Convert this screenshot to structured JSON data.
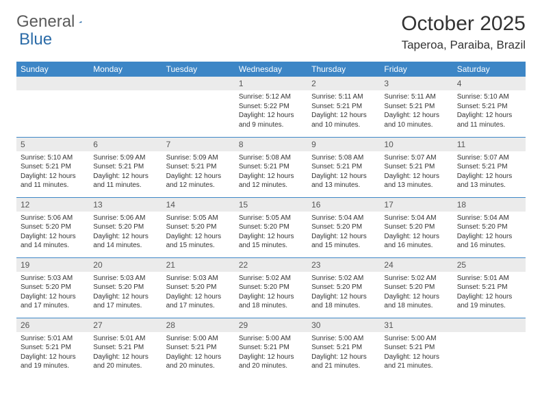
{
  "logo": {
    "text1": "General",
    "text2": "Blue"
  },
  "title": {
    "month": "October 2025",
    "location": "Taperoa, Paraiba, Brazil"
  },
  "colors": {
    "header_bg": "#3d86c6",
    "header_text": "#ffffff",
    "daynum_bg": "#ebebeb",
    "border": "#3d86c6",
    "logo_gray": "#5a5a5a",
    "logo_blue": "#2c6ca8"
  },
  "weekdays": [
    "Sunday",
    "Monday",
    "Tuesday",
    "Wednesday",
    "Thursday",
    "Friday",
    "Saturday"
  ],
  "weeks": [
    [
      {
        "n": "",
        "sr": "",
        "ss": "",
        "dl": ""
      },
      {
        "n": "",
        "sr": "",
        "ss": "",
        "dl": ""
      },
      {
        "n": "",
        "sr": "",
        "ss": "",
        "dl": ""
      },
      {
        "n": "1",
        "sr": "5:12 AM",
        "ss": "5:22 PM",
        "dl": "12 hours and 9 minutes."
      },
      {
        "n": "2",
        "sr": "5:11 AM",
        "ss": "5:21 PM",
        "dl": "12 hours and 10 minutes."
      },
      {
        "n": "3",
        "sr": "5:11 AM",
        "ss": "5:21 PM",
        "dl": "12 hours and 10 minutes."
      },
      {
        "n": "4",
        "sr": "5:10 AM",
        "ss": "5:21 PM",
        "dl": "12 hours and 11 minutes."
      }
    ],
    [
      {
        "n": "5",
        "sr": "5:10 AM",
        "ss": "5:21 PM",
        "dl": "12 hours and 11 minutes."
      },
      {
        "n": "6",
        "sr": "5:09 AM",
        "ss": "5:21 PM",
        "dl": "12 hours and 11 minutes."
      },
      {
        "n": "7",
        "sr": "5:09 AM",
        "ss": "5:21 PM",
        "dl": "12 hours and 12 minutes."
      },
      {
        "n": "8",
        "sr": "5:08 AM",
        "ss": "5:21 PM",
        "dl": "12 hours and 12 minutes."
      },
      {
        "n": "9",
        "sr": "5:08 AM",
        "ss": "5:21 PM",
        "dl": "12 hours and 13 minutes."
      },
      {
        "n": "10",
        "sr": "5:07 AM",
        "ss": "5:21 PM",
        "dl": "12 hours and 13 minutes."
      },
      {
        "n": "11",
        "sr": "5:07 AM",
        "ss": "5:21 PM",
        "dl": "12 hours and 13 minutes."
      }
    ],
    [
      {
        "n": "12",
        "sr": "5:06 AM",
        "ss": "5:20 PM",
        "dl": "12 hours and 14 minutes."
      },
      {
        "n": "13",
        "sr": "5:06 AM",
        "ss": "5:20 PM",
        "dl": "12 hours and 14 minutes."
      },
      {
        "n": "14",
        "sr": "5:05 AM",
        "ss": "5:20 PM",
        "dl": "12 hours and 15 minutes."
      },
      {
        "n": "15",
        "sr": "5:05 AM",
        "ss": "5:20 PM",
        "dl": "12 hours and 15 minutes."
      },
      {
        "n": "16",
        "sr": "5:04 AM",
        "ss": "5:20 PM",
        "dl": "12 hours and 15 minutes."
      },
      {
        "n": "17",
        "sr": "5:04 AM",
        "ss": "5:20 PM",
        "dl": "12 hours and 16 minutes."
      },
      {
        "n": "18",
        "sr": "5:04 AM",
        "ss": "5:20 PM",
        "dl": "12 hours and 16 minutes."
      }
    ],
    [
      {
        "n": "19",
        "sr": "5:03 AM",
        "ss": "5:20 PM",
        "dl": "12 hours and 17 minutes."
      },
      {
        "n": "20",
        "sr": "5:03 AM",
        "ss": "5:20 PM",
        "dl": "12 hours and 17 minutes."
      },
      {
        "n": "21",
        "sr": "5:03 AM",
        "ss": "5:20 PM",
        "dl": "12 hours and 17 minutes."
      },
      {
        "n": "22",
        "sr": "5:02 AM",
        "ss": "5:20 PM",
        "dl": "12 hours and 18 minutes."
      },
      {
        "n": "23",
        "sr": "5:02 AM",
        "ss": "5:20 PM",
        "dl": "12 hours and 18 minutes."
      },
      {
        "n": "24",
        "sr": "5:02 AM",
        "ss": "5:20 PM",
        "dl": "12 hours and 18 minutes."
      },
      {
        "n": "25",
        "sr": "5:01 AM",
        "ss": "5:21 PM",
        "dl": "12 hours and 19 minutes."
      }
    ],
    [
      {
        "n": "26",
        "sr": "5:01 AM",
        "ss": "5:21 PM",
        "dl": "12 hours and 19 minutes."
      },
      {
        "n": "27",
        "sr": "5:01 AM",
        "ss": "5:21 PM",
        "dl": "12 hours and 20 minutes."
      },
      {
        "n": "28",
        "sr": "5:00 AM",
        "ss": "5:21 PM",
        "dl": "12 hours and 20 minutes."
      },
      {
        "n": "29",
        "sr": "5:00 AM",
        "ss": "5:21 PM",
        "dl": "12 hours and 20 minutes."
      },
      {
        "n": "30",
        "sr": "5:00 AM",
        "ss": "5:21 PM",
        "dl": "12 hours and 21 minutes."
      },
      {
        "n": "31",
        "sr": "5:00 AM",
        "ss": "5:21 PM",
        "dl": "12 hours and 21 minutes."
      },
      {
        "n": "",
        "sr": "",
        "ss": "",
        "dl": ""
      }
    ]
  ],
  "labels": {
    "sunrise": "Sunrise:",
    "sunset": "Sunset:",
    "daylight": "Daylight:"
  }
}
